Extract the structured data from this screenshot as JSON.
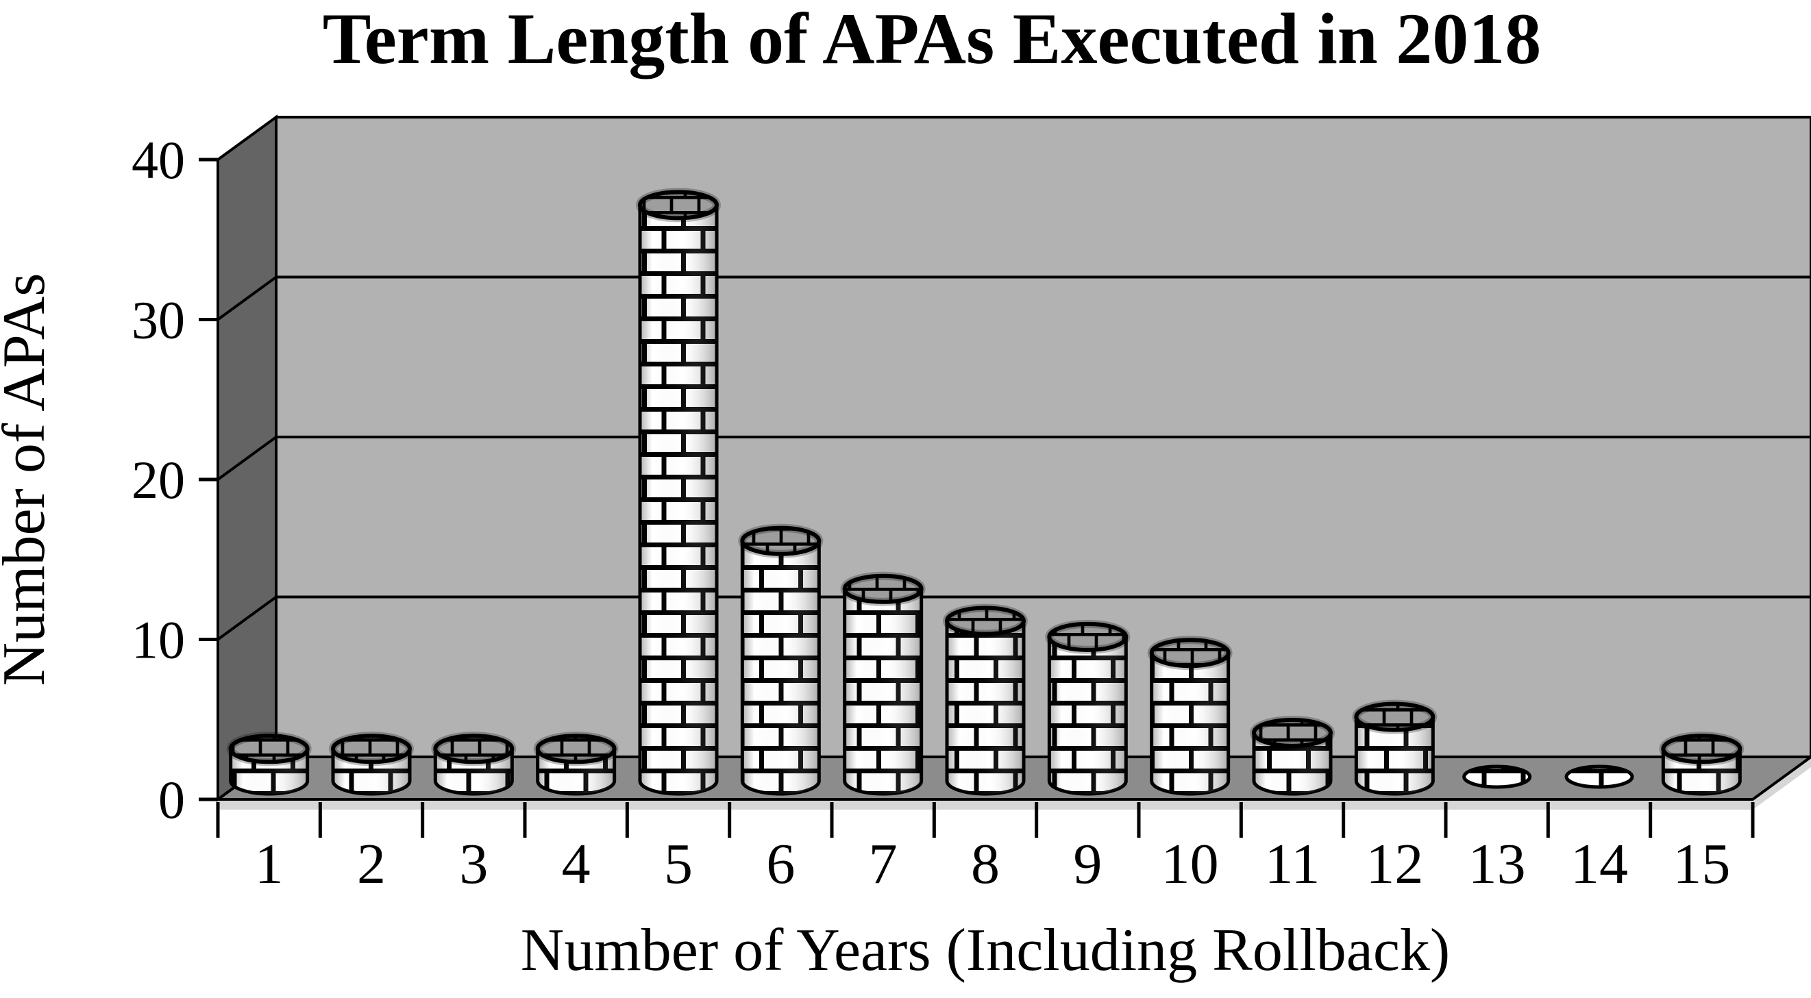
{
  "figure": {
    "background": "#ffffff"
  },
  "chart_data": {
    "type": "bar",
    "subtype": "3d-cylinder",
    "title": "Term Length of APAs Executed in 2018",
    "xlabel": "Number of Years (Including Rollback)",
    "ylabel": "Number of APAs",
    "categories": [
      "1",
      "2",
      "3",
      "4",
      "5",
      "6",
      "7",
      "8",
      "9",
      "10",
      "11",
      "12",
      "13",
      "14",
      "15"
    ],
    "values": [
      2,
      2,
      2,
      2,
      36,
      15,
      12,
      10,
      9,
      8,
      3,
      4,
      0,
      0,
      2
    ],
    "ylim": [
      0,
      40
    ],
    "yticks": [
      0,
      10,
      20,
      30,
      40
    ],
    "grid": true,
    "legend": "none",
    "colors": {
      "back_wall": "#b2b2b2",
      "side_wall": "#646464",
      "floor": "#8c8c8c",
      "floor_edge": "#d6d6d6",
      "brick_face": "#ffffff",
      "brick_mortar": "#000000",
      "cap_face": "#9e9e9e",
      "outline": "#000000",
      "text": "#000000",
      "background": "#ffffff"
    }
  }
}
